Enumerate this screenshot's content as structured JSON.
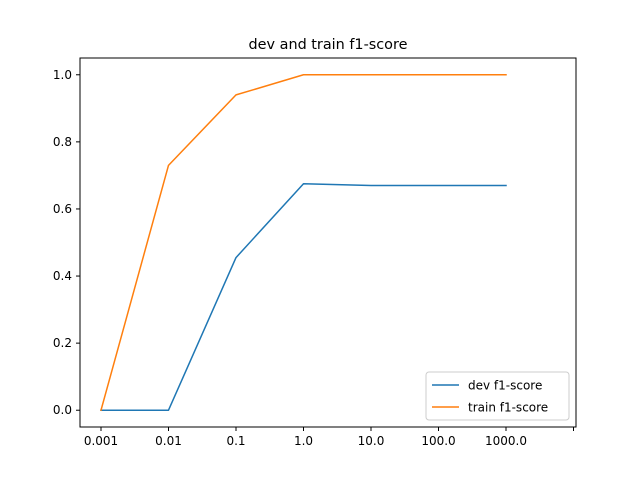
{
  "chart_data": {
    "type": "line",
    "title": "dev and train f1-score",
    "xlabel": "",
    "ylabel": "",
    "categories": [
      "0.001",
      "0.01",
      "0.1",
      "1.0",
      "10.0",
      "100.0",
      "1000.0"
    ],
    "x_tick_labels": [
      "0.001",
      "0.01",
      "0.1",
      "1.0",
      "10.0",
      "100.0",
      "1000.0",
      ""
    ],
    "y_tick_labels": [
      "0.0",
      "0.2",
      "0.4",
      "0.6",
      "0.8",
      "1.0"
    ],
    "y_ticks": [
      0.0,
      0.2,
      0.4,
      0.6,
      0.8,
      1.0
    ],
    "ylim": [
      -0.05,
      1.05
    ],
    "grid": false,
    "legend_position": "lower-right",
    "series": [
      {
        "name": "dev f1-score",
        "color": "#1f77b4",
        "values": [
          0.0,
          0.0,
          0.455,
          0.675,
          0.67,
          0.67,
          0.67
        ]
      },
      {
        "name": "train f1-score",
        "color": "#ff7f0e",
        "values": [
          0.0,
          0.73,
          0.94,
          1.0,
          1.0,
          1.0,
          1.0
        ]
      }
    ]
  }
}
